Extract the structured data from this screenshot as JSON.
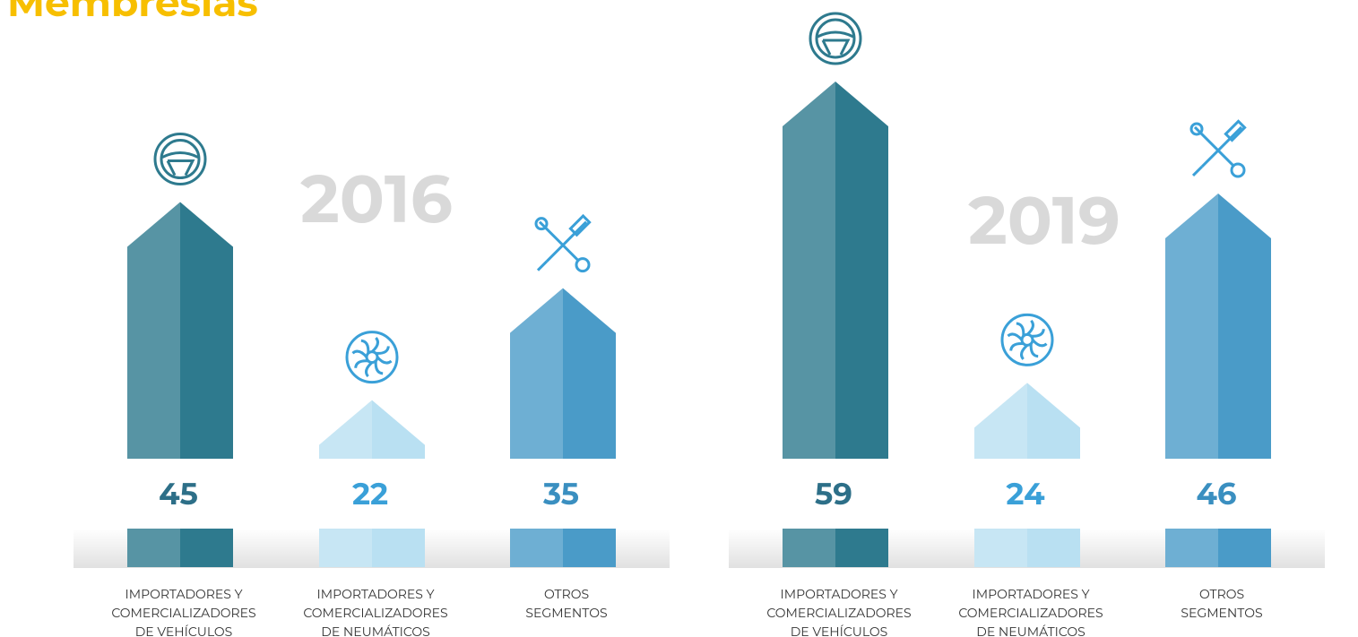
{
  "title": "Membresías",
  "chart_data": [
    {
      "type": "bar",
      "title": "2016",
      "categories": [
        [
          "IMPORTADORES Y",
          "COMERCIALIZADORES",
          "DE VEHÍCULOS"
        ],
        [
          "IMPORTADORES Y",
          "COMERCIALIZADORES",
          "DE NEUMÁTICOS"
        ],
        [
          "OTROS",
          "SEGMENTOS"
        ]
      ],
      "values": [
        45,
        22,
        35
      ],
      "colors": [
        "#2e7a8e",
        "#b9e0f2",
        "#4a9bc8"
      ],
      "label_colors": [
        "#2d6f88",
        "#3aa0d8",
        "#3a8fc0"
      ]
    },
    {
      "type": "bar",
      "title": "2019",
      "categories": [
        [
          "IMPORTADORES Y",
          "COMERCIALIZADORES",
          "DE VEHÍCULOS"
        ],
        [
          "IMPORTADORES Y",
          "COMERCIALIZADORES",
          "DE NEUMÁTICOS"
        ],
        [
          "OTROS",
          "SEGMENTOS"
        ]
      ],
      "values": [
        59,
        24,
        46
      ],
      "colors": [
        "#2e7a8e",
        "#b9e0f2",
        "#4a9bc8"
      ],
      "label_colors": [
        "#2d6f88",
        "#3aa0d8",
        "#3a8fc0"
      ]
    }
  ]
}
